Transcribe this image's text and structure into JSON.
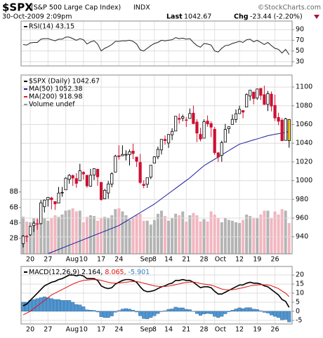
{
  "header": {
    "symbol": "$SPX",
    "name": "(S&P 500 Large Cap Index)",
    "exchange": "INDX",
    "source": "©StockCharts.com",
    "datetime": "30-Oct-2009 2:09pm",
    "last_label": "Last",
    "last": 1042.67,
    "chg_label": "Chg",
    "chg": "-23.44 (-2.20%)"
  },
  "chart_data": [
    {
      "type": "line",
      "legend": "RSI(14) 43.15",
      "color": "#222222",
      "ylim": [
        22,
        106
      ],
      "yticks": [
        30,
        50,
        70,
        90
      ],
      "grid": true,
      "values": [
        62,
        61,
        65,
        66,
        66,
        72,
        73,
        73,
        71,
        69,
        72,
        72,
        76,
        76,
        73,
        70,
        73,
        71,
        63,
        67,
        69,
        63,
        50,
        55,
        58,
        62,
        68,
        68,
        69,
        69,
        70,
        68,
        63,
        52,
        50,
        55,
        60,
        64,
        66,
        70,
        69,
        70,
        71,
        75,
        73,
        74,
        72,
        73,
        66,
        60,
        57,
        64,
        63,
        61,
        50,
        48,
        55,
        60,
        61,
        64,
        66,
        68,
        66,
        71,
        72,
        67,
        70,
        66,
        62,
        66,
        60,
        55,
        53,
        46,
        53,
        43.15
      ]
    },
    {
      "type": "candlestick",
      "legend": [
        {
          "text": "$SPX (Daily) 1042.67",
          "color": "#000000"
        },
        {
          "text": "MA(50) 1052.38",
          "color": "#1c1c9c"
        },
        {
          "text": "MA(200) 918.98",
          "color": "#e02020"
        },
        {
          "text": "Volume undef",
          "color": "#999999"
        }
      ],
      "categories": [
        null,
        null,
        "20",
        null,
        null,
        null,
        null,
        "27",
        null,
        null,
        null,
        null,
        "Aug",
        null,
        null,
        null,
        null,
        "10",
        null,
        null,
        null,
        null,
        "17",
        null,
        null,
        null,
        null,
        "24",
        null,
        null,
        null,
        null,
        null,
        "Sep",
        null,
        null,
        null,
        "8",
        null,
        null,
        null,
        "14",
        null,
        null,
        null,
        null,
        "21",
        null,
        null,
        null,
        null,
        "28",
        null,
        null,
        "Oct",
        null,
        null,
        null,
        null,
        null,
        null,
        "12",
        null,
        null,
        null,
        null,
        "19",
        null,
        null,
        null,
        null,
        "26",
        null,
        null,
        null,
        null
      ],
      "open": [
        932.7,
        940.6,
        942.1,
        952.0,
        953.4,
        954.1,
        972.2,
        979.6,
        981.5,
        977.7,
        976.0,
        986.8,
        990.2,
        1001.4,
        1005.4,
        1002.2,
        999.8,
        1008.9,
        1005.8,
        994.0,
        1005.9,
        1012.2,
        998.2,
        980.6,
        986.9,
        996.4,
        1009.1,
        1026.6,
        1026.6,
        1027.3,
        1027.8,
        1031.6,
        1025.2,
        1019.5,
        996.1,
        996.1,
        1003.8,
        1018.7,
        1025.4,
        1032.8,
        1044.1,
        1040.2,
        1049.0,
        1053.0,
        1066.6,
        1066.6,
        1064.9,
        1066.4,
        1072.1,
        1062.6,
        1049.5,
        1045.4,
        1063.7,
        1061.0,
        1054.9,
        1029.7,
        1026.9,
        1041.1,
        1055.5,
        1060.1,
        1065.3,
        1071.6,
        1074.9,
        1078.6,
        1090.4,
        1094.7,
        1088.2,
        1098.6,
        1091.9,
        1081.4,
        1092.4,
        1080.4,
        1067.5,
        1064.6,
        1043.0,
        1065.4
      ],
      "high": [
        941.9,
        941.9,
        951.6,
        956.5,
        959.6,
        979.4,
        979.8,
        982.5,
        982.8,
        977.8,
        993.2,
        993.2,
        1003.6,
        1007.1,
        1006.6,
        1008.0,
        1018.0,
        1010.1,
        1005.8,
        1012.6,
        1013.1,
        1012.6,
        998.2,
        991.2,
        999.6,
        1008.9,
        1027.6,
        1037.8,
        1037.7,
        1032.5,
        1033.3,
        1039.5,
        1025.2,
        1028.5,
        1000.3,
        1003.4,
        1016.5,
        1026.1,
        1036.3,
        1044.1,
        1048.2,
        1049.7,
        1056.0,
        1068.8,
        1071.7,
        1070.5,
        1067.9,
        1077.0,
        1080.2,
        1065.6,
        1056.4,
        1065.4,
        1069.6,
        1063.4,
        1057.3,
        1030.6,
        1042.6,
        1060.6,
        1058.0,
        1070.7,
        1076.0,
        1080.0,
        1075.3,
        1093.2,
        1096.6,
        1094.7,
        1098.4,
        1098.6,
        1101.4,
        1095.8,
        1095.2,
        1091.8,
        1072.5,
        1066.8,
        1067.1,
        1065.6
      ],
      "low": [
        928.6,
        934.5,
        940.9,
        945.2,
        947.6,
        953.3,
        965.9,
        972.3,
        969.4,
        968.7,
        976.0,
        982.8,
        990.2,
        996.7,
        994.3,
        992.4,
        999.8,
        1000.9,
        992.4,
        993.4,
        1000.5,
        994.6,
        978.5,
        980.6,
        980.6,
        992.9,
        1009.1,
        1022.5,
        1026.2,
        1021.6,
        1016.2,
        1023.1,
        1014.6,
        996.3,
        991.9,
        992.3,
        1001.7,
        1018.7,
        1023.0,
        1028.0,
        1038.4,
        1035.0,
        1043.4,
        1052.9,
        1060.8,
        1063.4,
        1057.3,
        1066.4,
        1060.4,
        1041.2,
        1041.9,
        1045.4,
        1057.5,
        1046.5,
        1027.5,
        1019.9,
        1020.2,
        1041.1,
        1050.3,
        1060.1,
        1062.0,
        1071.6,
        1066.5,
        1078.6,
        1085.4,
        1081.5,
        1086.4,
        1086.2,
        1080.8,
        1074.3,
        1073.9,
        1063.7,
        1059.3,
        1042.2,
        1043.0,
        1035.2
      ],
      "close": [
        940.74,
        940.38,
        951.13,
        954.58,
        954.07,
        976.29,
        979.26,
        982.18,
        979.62,
        975.15,
        986.75,
        987.48,
        1002.63,
        1005.65,
        1002.72,
        997.08,
        1010.48,
        1007.1,
        994.35,
        1005.81,
        1012.73,
        1004.09,
        979.73,
        989.67,
        996.46,
        1007.37,
        1026.13,
        1025.57,
        1028.0,
        1028.12,
        1030.98,
        1028.93,
        1020.62,
        998.04,
        994.75,
        1003.24,
        1016.4,
        1025.39,
        1033.37,
        1044.14,
        1042.73,
        1049.34,
        1052.63,
        1068.76,
        1065.49,
        1068.3,
        1064.66,
        1071.66,
        1060.87,
        1050.78,
        1044.38,
        1062.98,
        1060.61,
        1057.08,
        1029.85,
        1025.21,
        1040.46,
        1054.72,
        1057.58,
        1065.48,
        1071.49,
        1076.19,
        1073.19,
        1092.02,
        1096.56,
        1087.68,
        1097.91,
        1091.06,
        1081.4,
        1092.91,
        1079.6,
        1066.95,
        1063.41,
        1042.63,
        1066.11,
        1042.67
      ],
      "colors": {
        "up": "#000000",
        "down": "#cc1133",
        "last": "#ffd21f"
      },
      "ylim": [
        921.8,
        1112.8
      ],
      "yticks": [
        940,
        960,
        980,
        1000,
        1020,
        1040,
        1060,
        1080,
        1100
      ],
      "grid": true,
      "ma50": {
        "color": "#1c1c9c",
        "values": [
          908,
          910,
          912,
          914,
          916,
          918,
          920,
          922,
          923.5,
          925,
          926.5,
          928,
          929.5,
          931,
          932.5,
          934,
          935.5,
          937,
          938.5,
          940,
          941.5,
          943,
          944.5,
          946,
          947.5,
          949,
          950.5,
          952,
          954.3,
          956.6,
          958.9,
          961.2,
          963.5,
          965.8,
          968.1,
          970.4,
          972.7,
          975,
          977.8,
          980.6,
          983.4,
          986.2,
          989,
          991.8,
          994.6,
          997.4,
          1000.2,
          1003,
          1006.3,
          1009.5,
          1012.8,
          1016,
          1018.3,
          1020.6,
          1022.9,
          1025.2,
          1027.5,
          1029.8,
          1032.1,
          1034.4,
          1036.7,
          1039,
          1040.1,
          1041.2,
          1042.4,
          1043.5,
          1044.6,
          1045.7,
          1046.9,
          1048,
          1048.8,
          1049.5,
          1050.2,
          1050.9,
          1051.6,
          1052.38
        ]
      },
      "volume": {
        "ylim": [
          0,
          23.1
        ],
        "yticks": [
          {
            "value": 2,
            "label": "2B"
          },
          {
            "value": 4,
            "label": "4B"
          },
          {
            "value": 6,
            "label": "6B"
          },
          {
            "value": 8,
            "label": "8B"
          }
        ],
        "colors": {
          "up": "#b4b4b4",
          "down": "#f2b6c0"
        },
        "values": [
          4.8,
          4.2,
          4.1,
          4.6,
          4.5,
          5.2,
          4.6,
          4.3,
          4.6,
          5.0,
          4.8,
          5.1,
          5.6,
          5.7,
          5.9,
          5.5,
          5.6,
          4.1,
          4.8,
          5.0,
          4.9,
          4.3,
          4.6,
          4.8,
          4.7,
          5.0,
          5.8,
          5.9,
          5.5,
          5.0,
          4.4,
          4.6,
          5.0,
          5.2,
          4.3,
          4.3,
          3.8,
          4.4,
          5.2,
          5.6,
          4.9,
          4.3,
          4.6,
          5.2,
          5.0,
          5.5,
          4.2,
          5.0,
          5.3,
          5.0,
          4.2,
          4.5,
          4.2,
          5.5,
          5.1,
          4.6,
          4.1,
          4.7,
          4.4,
          4.3,
          4.1,
          4.0,
          4.4,
          5.1,
          4.9,
          4.6,
          4.7,
          5.1,
          5.6,
          5.6,
          4.6,
          5.5,
          5.1,
          5.8,
          5.6,
          4.0
        ]
      }
    },
    {
      "type": "macd",
      "legend": [
        {
          "text": "MACD(12,26,9)",
          "color": "#000000"
        },
        {
          "text": "2.164,",
          "color": "#000000"
        },
        {
          "text": "8.065,",
          "color": "#e01010"
        },
        {
          "text": "-5.901",
          "color": "#2f7fc4"
        }
      ],
      "ylim": [
        -7,
        24.7
      ],
      "yticks": [
        -5,
        0,
        5,
        10,
        15,
        20
      ],
      "grid": true,
      "series": [
        {
          "color": "#000000",
          "values": [
            3,
            4,
            6,
            8,
            10,
            12,
            14,
            15,
            16,
            16.5,
            17.5,
            18,
            19,
            20,
            20,
            19.5,
            20,
            19.5,
            18,
            18,
            18,
            17,
            14,
            13,
            12.5,
            13,
            15,
            16,
            17,
            17.5,
            17.5,
            17,
            16,
            13.5,
            11.5,
            10.8,
            11,
            11.5,
            12.5,
            13.5,
            14,
            15,
            15.5,
            17,
            17,
            17.5,
            17,
            17,
            16,
            14.5,
            13,
            13.5,
            13.5,
            13,
            11,
            9.5,
            9.5,
            10.5,
            11.5,
            12.5,
            13.5,
            14.5,
            14.5,
            15.5,
            16,
            15.5,
            15.5,
            15,
            14,
            13.5,
            12,
            10.5,
            9,
            6.5,
            5.5,
            2.164
          ]
        },
        {
          "color": "#e01010",
          "values": [
            -2,
            -1,
            0,
            1.5,
            3,
            4.5,
            6,
            7.5,
            9,
            10,
            11,
            12,
            13,
            14,
            15,
            15.8,
            16.5,
            17,
            17.2,
            17.4,
            17.5,
            17.4,
            17,
            16.5,
            16,
            15.6,
            15.5,
            15.6,
            15.8,
            16,
            16.3,
            16.4,
            16.4,
            16,
            15.5,
            15,
            14.5,
            14,
            13.8,
            13.7,
            13.7,
            13.9,
            14.2,
            14.7,
            15.1,
            15.6,
            15.9,
            16.1,
            16.1,
            15.8,
            15.3,
            15,
            14.7,
            14.4,
            13.8,
            13,
            12.3,
            11.9,
            11.8,
            11.9,
            12.2,
            12.6,
            13,
            13.5,
            14,
            14.3,
            14.5,
            14.7,
            14.6,
            14.5,
            14.1,
            13.3,
            12.5,
            11.2,
            10,
            8.065
          ]
        }
      ],
      "histogram": {
        "color": "#4f97d3",
        "values": [
          5,
          5,
          6,
          6.5,
          7,
          7.5,
          8,
          7.5,
          7,
          6.5,
          6.5,
          6,
          6,
          6,
          5,
          3.7,
          3.5,
          2.5,
          0.8,
          0.6,
          0.5,
          -0.4,
          -3,
          -3.5,
          -3.5,
          -2.6,
          -0.5,
          0.4,
          1.2,
          1.5,
          1.2,
          0.6,
          -0.4,
          -2.5,
          -4,
          -4.2,
          -3.5,
          -2.5,
          -1.3,
          -0.2,
          0.3,
          1.1,
          1.3,
          2.3,
          1.9,
          1.9,
          1.1,
          0.9,
          -0.1,
          -1.3,
          -2.3,
          -1.5,
          -1.2,
          -1.4,
          -2.8,
          -3.5,
          -2.8,
          -1.4,
          -0.3,
          0.6,
          1.3,
          1.9,
          1.5,
          2,
          2,
          1.2,
          1,
          0.3,
          -0.6,
          -1,
          -2.1,
          -2.8,
          -3.5,
          -4.7,
          -4.5,
          -5.901
        ]
      }
    }
  ]
}
